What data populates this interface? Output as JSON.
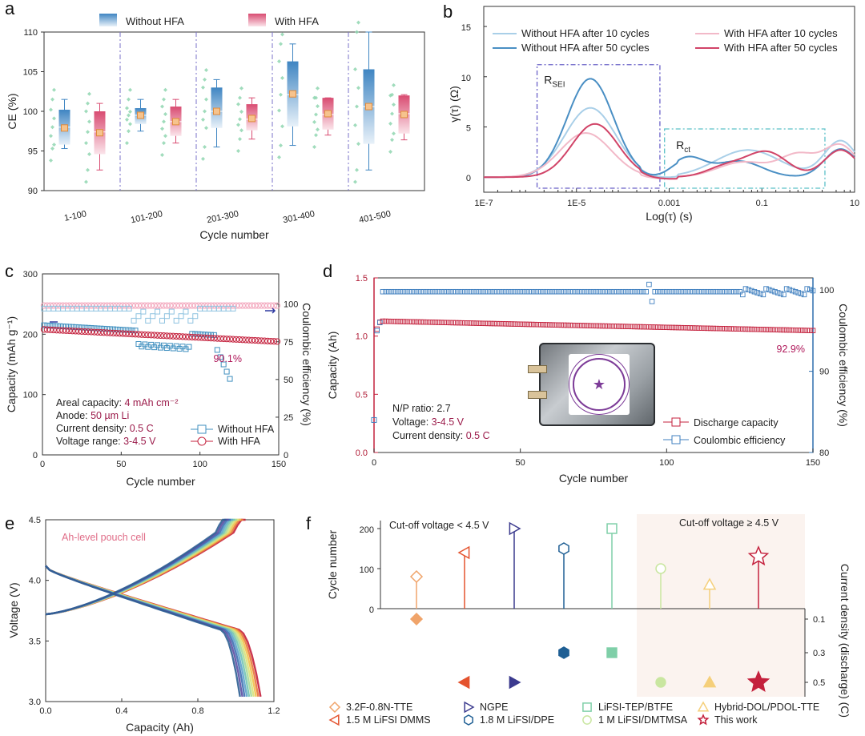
{
  "chart_data": [
    {
      "panel": "a",
      "type": "box",
      "legend": [
        "Without HFA",
        "With HFA"
      ],
      "colors": {
        "without": "#5b93c9",
        "with": "#d4587d"
      },
      "ylabel": "CE (%)",
      "xlabel": "Cycle number",
      "ylim": [
        90,
        110
      ],
      "yticks": [
        "90",
        "95",
        "100",
        "105",
        "110"
      ],
      "categories": [
        "1-100",
        "101-200",
        "201-300",
        "301-400",
        "401-500"
      ],
      "without": [
        {
          "q1": 95.8,
          "q3": 100.2,
          "median": 98.0,
          "mean": 97.9,
          "wlo": 95.3,
          "whi": 101.5
        },
        {
          "q1": 98.4,
          "q3": 100.4,
          "median": 99.5,
          "mean": 99.5,
          "wlo": 97.5,
          "whi": 101.5
        },
        {
          "q1": 97.9,
          "q3": 103.0,
          "median": 100.0,
          "mean": 100.0,
          "wlo": 95.5,
          "whi": 104.0
        },
        {
          "q1": 98.1,
          "q3": 106.3,
          "median": 102.1,
          "mean": 102.2,
          "wlo": 95.7,
          "whi": 108.5
        },
        {
          "q1": 95.9,
          "q3": 105.3,
          "median": 100.6,
          "mean": 100.6,
          "wlo": 92.6,
          "whi": 110.0
        }
      ],
      "with": [
        {
          "q1": 94.6,
          "q3": 100.0,
          "median": 97.4,
          "mean": 97.3,
          "wlo": 92.6,
          "whi": 101.0
        },
        {
          "q1": 96.9,
          "q3": 100.6,
          "median": 98.7,
          "mean": 98.7,
          "wlo": 96.0,
          "whi": 101.5
        },
        {
          "q1": 97.6,
          "q3": 100.9,
          "median": 99.0,
          "mean": 99.1,
          "wlo": 96.5,
          "whi": 101.7
        },
        {
          "q1": 97.7,
          "q3": 101.7,
          "median": 99.6,
          "mean": 99.7,
          "wlo": 97.0,
          "whi": 101.7
        },
        {
          "q1": 97.2,
          "q3": 102.0,
          "median": 99.7,
          "mean": 99.6,
          "wlo": 96.4,
          "whi": 102.1
        }
      ]
    },
    {
      "panel": "b",
      "type": "line",
      "xlabel": "Log(τ) (s)",
      "ylabel": "γ(τ)   (Ω)",
      "xticks": [
        "1E-7",
        "1E-5",
        "0.001",
        "0.1",
        "10"
      ],
      "yticks": [
        "0",
        "5",
        "10",
        "15"
      ],
      "ylim": [
        -1.5,
        17
      ],
      "annotations": {
        "rsei": "R",
        "rsei_sub": "SEI",
        "rct": "R",
        "rct_sub": "ct"
      },
      "series": [
        {
          "name": "Without HFA after 10 cycles",
          "color": "#a9cfe8",
          "peaks": [
            [
              -4.7,
              6.9,
              0.55
            ],
            [
              -1.3,
              2.7,
              0.7
            ],
            [
              0.7,
              3.6,
              0.35
            ]
          ]
        },
        {
          "name": "Without HFA after 50 cycles",
          "color": "#4a8fc4",
          "peaks": [
            [
              -4.7,
              9.8,
              0.5
            ],
            [
              -2.6,
              1.9,
              0.35
            ],
            [
              -1.5,
              1.6,
              0.5
            ],
            [
              0.7,
              2.8,
              0.35
            ]
          ]
        },
        {
          "name": "With HFA after 10 cycles",
          "color": "#f2b9c8",
          "peaks": [
            [
              -4.8,
              4.4,
              0.55
            ],
            [
              -1.4,
              1.5,
              0.55
            ],
            [
              -0.2,
              2.2,
              0.4
            ],
            [
              0.7,
              3.1,
              0.35
            ]
          ]
        },
        {
          "name": "With HFA after 50 cycles",
          "color": "#d14468",
          "peaks": [
            [
              -4.6,
              5.3,
              0.5
            ],
            [
              -1.8,
              1.0,
              0.4
            ],
            [
              -0.9,
              2.5,
              0.45
            ],
            [
              0.7,
              2.7,
              0.35
            ]
          ]
        }
      ]
    },
    {
      "panel": "c",
      "type": "scatter",
      "xlabel": "Cycle number",
      "ylabel": "Capacity (mAh g⁻¹)",
      "y2label": "Coulombic efficiency (%)",
      "xlim": [
        0,
        150
      ],
      "ylim": [
        0,
        300
      ],
      "y2lim": [
        0,
        120
      ],
      "xticks": [
        "0",
        "50",
        "100",
        "150"
      ],
      "yticks": [
        "0",
        "100",
        "200",
        "300"
      ],
      "y2ticks": [
        "0",
        "25",
        "50",
        "75",
        "100"
      ],
      "retention_label": "90.1%",
      "legend": [
        "Without HFA",
        "With HFA"
      ],
      "notes": [
        {
          "k": "Areal capacity: ",
          "v": "4 mAh cm⁻²"
        },
        {
          "k": "Anode: ",
          "v": "50 µm Li"
        },
        {
          "k": "Current density: ",
          "v": "0.5 C"
        },
        {
          "k": "Voltage range: ",
          "v": "3-4.5 V"
        }
      ]
    },
    {
      "panel": "d",
      "type": "scatter",
      "xlabel": "Cycle number",
      "ylabel": "Capacity (Ah)",
      "y2label": "Coulombic efficiency (%)",
      "xlim": [
        0,
        150
      ],
      "ylim": [
        0,
        1.5
      ],
      "y2lim": [
        80,
        101.5
      ],
      "xticks": [
        "0",
        "50",
        "100",
        "150"
      ],
      "yticks": [
        "0.0",
        "0.5",
        "1.0",
        "1.5"
      ],
      "y2ticks": [
        "80",
        "90",
        "100"
      ],
      "retention_label": "92.9%",
      "legend": [
        "Discharge capacity",
        "Coulombic efficiency"
      ],
      "notes": [
        {
          "k": "N/P ratio: ",
          "v": "2.7"
        },
        {
          "k": "Voltage: ",
          "v": "3-4.5 V"
        },
        {
          "k": "Current density: ",
          "v": "0.5 C"
        }
      ]
    },
    {
      "panel": "e",
      "type": "line",
      "xlabel": "Capacity (Ah)",
      "ylabel": "Voltage (V)",
      "xlim": [
        0,
        1.2
      ],
      "ylim": [
        3.0,
        4.5
      ],
      "xticks": [
        "0.0",
        "0.4",
        "0.8",
        "1.2"
      ],
      "yticks": [
        "3.0",
        "3.5",
        "4.0",
        "4.5"
      ],
      "annotation": "Ah-level pouch cell"
    },
    {
      "panel": "f",
      "type": "lollipop",
      "ylabel": "Cycle number",
      "y2label": "Current density (discharge) (C)",
      "yticks": [
        "0",
        "100",
        "200"
      ],
      "y2ticks": [
        "0.1",
        "0.3",
        "0.5"
      ],
      "region_labels": [
        "Cut-off voltage < 4.5 V",
        "Cut-off voltage ≥ 4.5 V"
      ],
      "items": [
        {
          "name": "3.2F-0.8N-TTE",
          "cycles": 80,
          "rate": 0.1,
          "color": "#f0a46a",
          "shape": "diamond"
        },
        {
          "name": "1.5 M LiFSI DMMS",
          "cycles": 140,
          "rate": 0.5,
          "color": "#e4532e",
          "shape": "tri-left"
        },
        {
          "name": "NGPE",
          "cycles": 200,
          "rate": 0.5,
          "color": "#3b3a8e",
          "shape": "tri-right"
        },
        {
          "name": "1.8 M LiFSI/DPE",
          "cycles": 150,
          "rate": 0.3,
          "color": "#1f5f94",
          "shape": "hexagon"
        },
        {
          "name": "LiFSI-TEP/BTFE",
          "cycles": 200,
          "rate": 0.3,
          "color": "#7fcfa8",
          "shape": "square"
        },
        {
          "name": "1 M LiFSI/DMTMSA",
          "cycles": 100,
          "rate": 0.5,
          "color": "#c9e6a0",
          "shape": "circle"
        },
        {
          "name": "Hybrid-DOL/PDOL-TTE",
          "cycles": 60,
          "rate": 0.5,
          "color": "#f5cf7a",
          "shape": "triangle"
        },
        {
          "name": "This work",
          "cycles": 130,
          "rate": 0.5,
          "color": "#c4213d",
          "shape": "star"
        }
      ]
    }
  ]
}
